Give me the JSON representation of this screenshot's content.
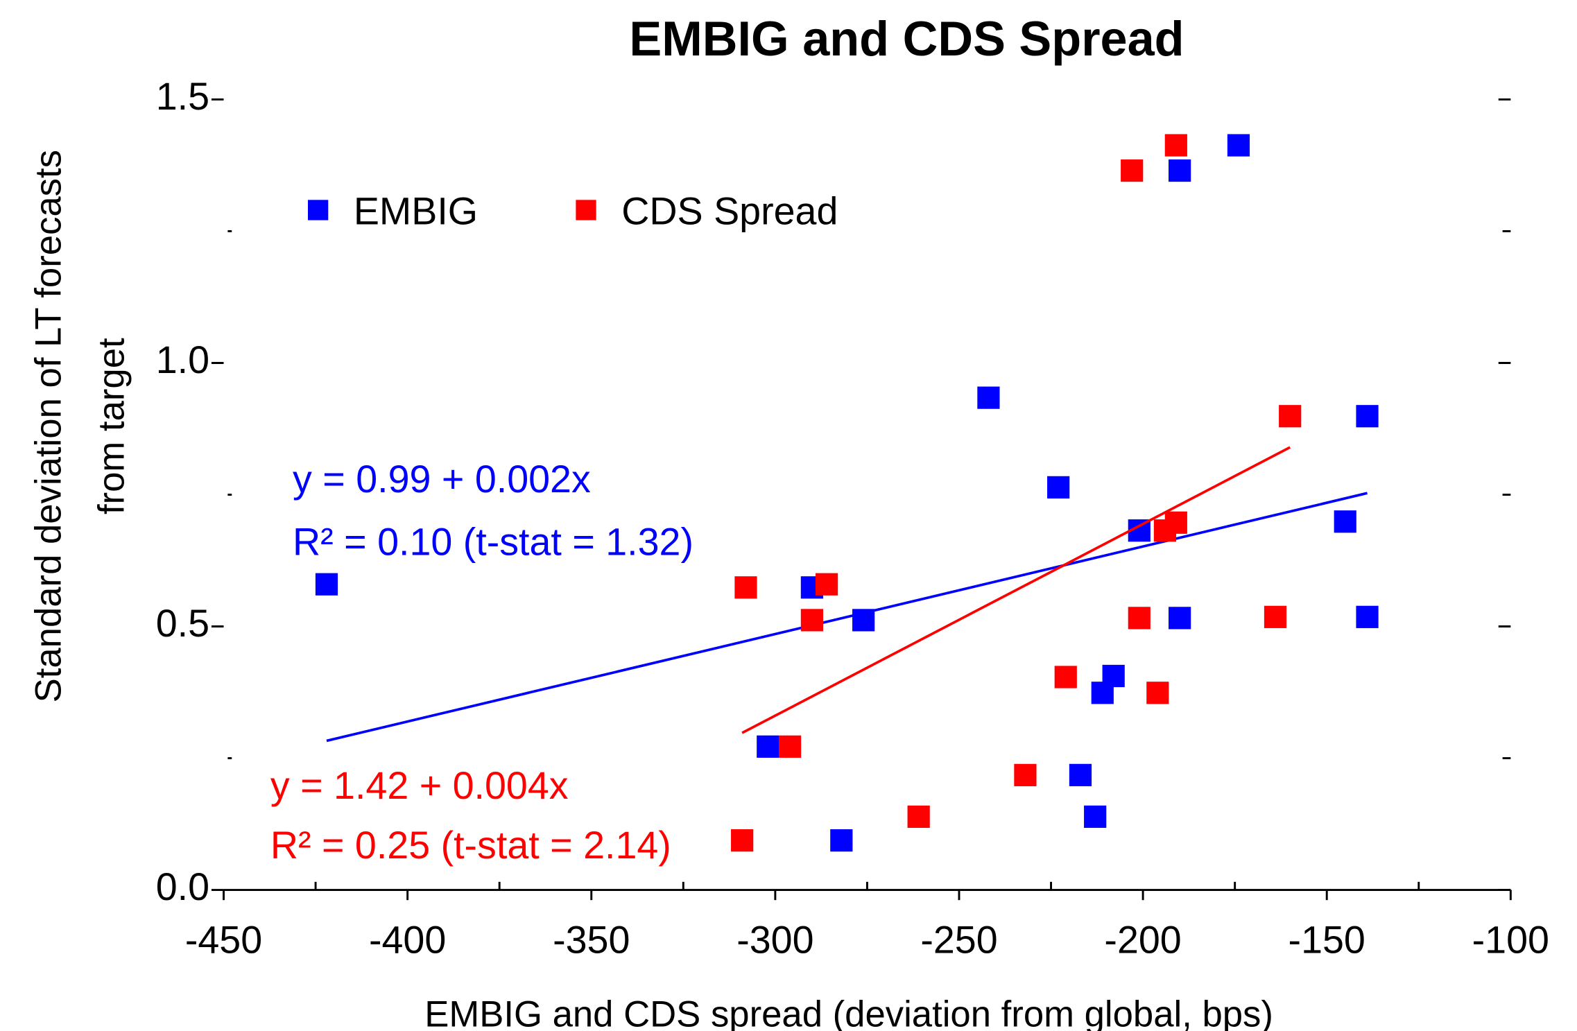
{
  "chart_data": {
    "type": "scatter",
    "title": "EMBIG and CDS Spread",
    "xlabel": "EMBIG and CDS spread (deviation from global, bps)",
    "ylabel": [
      "Standard deviation of LT forecasts",
      "from target"
    ],
    "xlim": [
      -450,
      -100
    ],
    "ylim": [
      0,
      1.5
    ],
    "xticks": [
      -450,
      -400,
      -350,
      -300,
      -250,
      -200,
      -150,
      -100
    ],
    "xminor": [
      -425,
      -375,
      -325,
      -275,
      -225,
      -175,
      -125
    ],
    "yticks": [
      {
        "value": 0,
        "label": "0.0"
      },
      {
        "value": 0.5,
        "label": "0.5"
      },
      {
        "value": 1,
        "label": "1.0"
      },
      {
        "value": 1.5,
        "label": "1.5"
      }
    ],
    "yminor": [
      0.25,
      0.75,
      1.25
    ],
    "legend": "top-left",
    "series": [
      {
        "name": "EMBIG",
        "color": "#0000ff",
        "x": [
          -422,
          -290,
          -276,
          -302,
          -282,
          -242,
          -223,
          -201,
          -190,
          -174,
          -190,
          -208,
          -211,
          -217,
          -213,
          -145,
          -139,
          -139
        ],
        "values": [
          0.58,
          0.574,
          0.512,
          0.272,
          0.094,
          0.934,
          0.764,
          0.682,
          1.365,
          1.413,
          0.516,
          0.406,
          0.374,
          0.218,
          0.139,
          0.699,
          0.899,
          0.518
        ],
        "fit": {
          "x": [
            -422,
            -139
          ],
          "values": [
            0.283,
            0.753
          ]
        },
        "annotation": [
          "y = 0.99 + 0.002x",
          "R² = 0.10 (t-stat = 1.32)"
        ]
      },
      {
        "name": "CDS Spread",
        "color": "#ff0000",
        "x": [
          -308,
          -286,
          -290,
          -296,
          -309,
          -261,
          -232,
          -221,
          -203,
          -191,
          -194,
          -191,
          -201,
          -196,
          -164,
          -160
        ],
        "values": [
          0.574,
          0.58,
          0.512,
          0.272,
          0.094,
          0.139,
          0.218,
          0.404,
          1.365,
          1.413,
          0.682,
          0.697,
          0.516,
          0.374,
          0.518,
          0.899
        ],
        "fit": {
          "x": [
            -309,
            -160
          ],
          "values": [
            0.298,
            0.84
          ]
        },
        "annotation": [
          "y = 1.42 + 0.004x",
          "R² = 0.25 (t-stat = 2.14)"
        ]
      }
    ]
  }
}
